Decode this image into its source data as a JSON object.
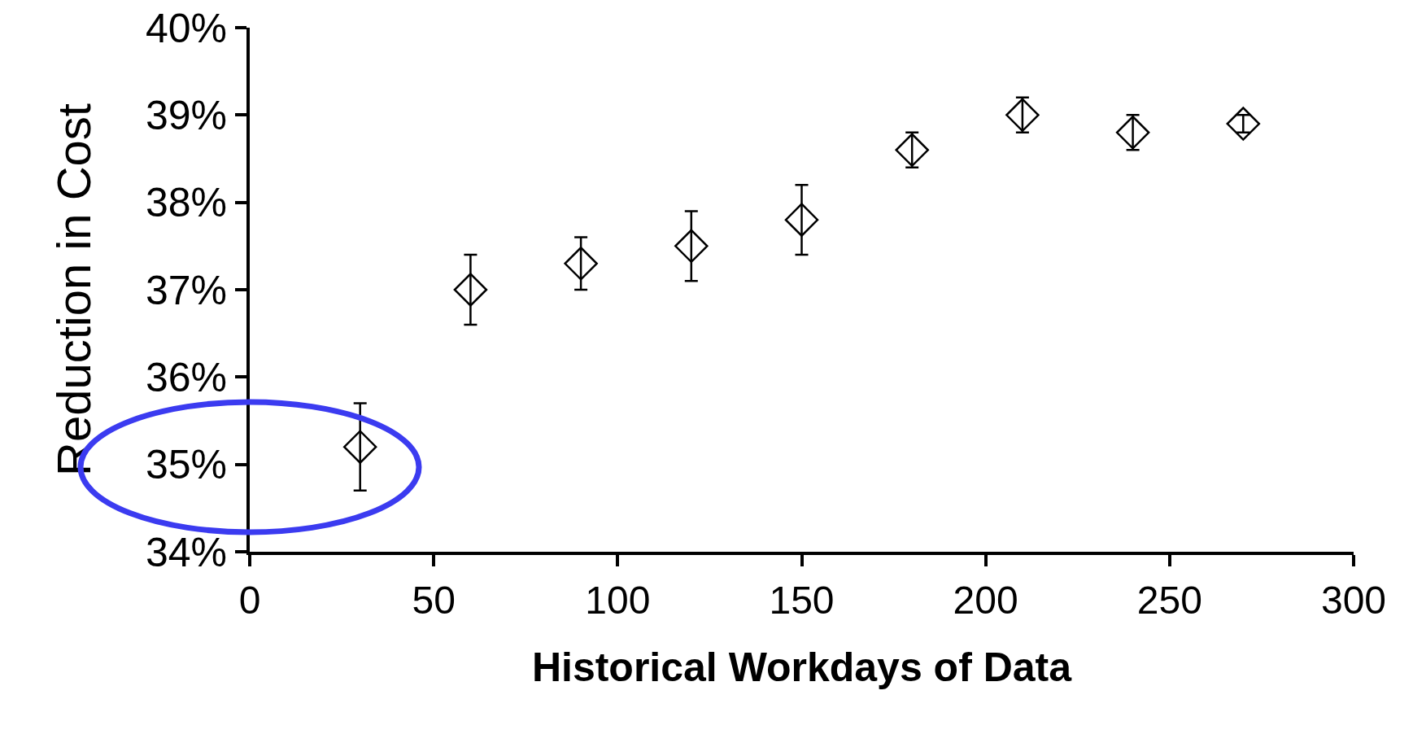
{
  "chart_data": {
    "type": "scatter",
    "xlabel": "Historical Workdays of Data",
    "ylabel": "Reduction in Cost",
    "x": [
      30,
      60,
      90,
      120,
      150,
      180,
      210,
      240,
      270
    ],
    "values": [
      35.2,
      37.0,
      37.3,
      37.5,
      37.8,
      38.6,
      39.0,
      38.8,
      38.9
    ],
    "errors": [
      0.5,
      0.4,
      0.3,
      0.4,
      0.4,
      0.2,
      0.2,
      0.2,
      0.1
    ],
    "color": "#000000",
    "marker": "diamond",
    "grid": false,
    "legend": false,
    "xlim": [
      0,
      300
    ],
    "xticks": [
      0,
      50,
      100,
      150,
      200,
      250,
      300
    ],
    "ylim": [
      34,
      40
    ],
    "yticks": [
      {
        "value": 34,
        "label": "34%"
      },
      {
        "value": 35,
        "label": "35%"
      },
      {
        "value": 36,
        "label": "36%"
      },
      {
        "value": 37,
        "label": "37%"
      },
      {
        "value": 38,
        "label": "38%"
      },
      {
        "value": 39,
        "label": "39%"
      },
      {
        "value": 40,
        "label": "40%"
      }
    ]
  }
}
